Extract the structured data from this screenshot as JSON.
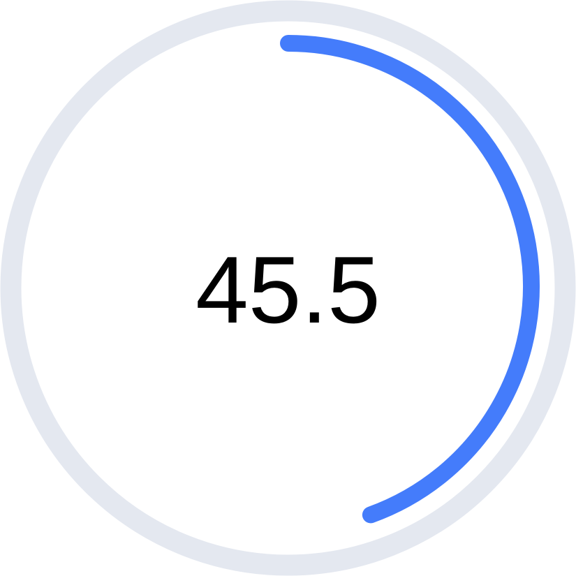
{
  "gauge": {
    "value_label": "45.5",
    "progress_fraction": 0.445,
    "colors": {
      "track": "#e4e8f0",
      "progress": "#447cfb",
      "text": "#000000"
    }
  }
}
